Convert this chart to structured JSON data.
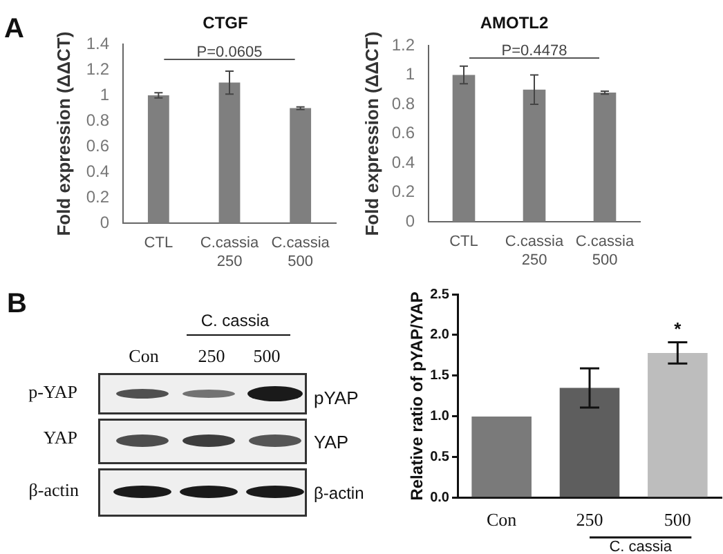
{
  "chart_data": [
    {
      "type": "bar",
      "title": "CTGF",
      "ylabel": "Fold expression (ΔΔCT)",
      "categories": [
        "CTL",
        "C.cassia 250",
        "C.cassia 500"
      ],
      "values": [
        1.0,
        1.1,
        0.9
      ],
      "errors": [
        0.02,
        0.09,
        0.01
      ],
      "color": "#7f7f7f",
      "ylim": [
        0,
        1.4
      ],
      "yticks": [
        0,
        0.2,
        0.4,
        0.6,
        0.8,
        1,
        1.2,
        1.4
      ],
      "annotations": [
        "A",
        "P=0.0605"
      ]
    },
    {
      "type": "bar",
      "title": "AMOTL2",
      "ylabel": "Fold expression (ΔΔCT)",
      "categories": [
        "CTL",
        "C.cassia 250",
        "C.cassia 500"
      ],
      "values": [
        1.0,
        0.9,
        0.88
      ],
      "errors": [
        0.06,
        0.1,
        0.01
      ],
      "color": "#7f7f7f",
      "ylim": [
        0,
        1.2
      ],
      "yticks": [
        0,
        0.2,
        0.4,
        0.6,
        0.8,
        1,
        1.2
      ],
      "annotations": [
        "P=0.4478"
      ]
    },
    {
      "type": "other",
      "annotations": [
        "B",
        "C. cassia",
        "Con",
        "250",
        "500",
        "p-YAP",
        "YAP",
        "β-actin",
        "pYAP",
        "YAP",
        "β-actin"
      ]
    },
    {
      "type": "bar",
      "ylabel": "Relative ratio of pYAP/YAP",
      "categories": [
        "Con",
        "250",
        "500"
      ],
      "values": [
        1.0,
        1.35,
        1.78
      ],
      "errors": [
        null,
        0.24,
        0.13
      ],
      "colors": [
        "#7a7a7a",
        "#5e5e5e",
        "#bdbdbd"
      ],
      "ylim": [
        0,
        2.5
      ],
      "yticks": [
        {
          "value": 0,
          "label": "0.0"
        },
        0.5,
        {
          "value": 1,
          "label": "1.0"
        },
        1.5,
        {
          "value": 2,
          "label": "2.0"
        },
        2.5
      ],
      "annotations": [
        "*",
        "C. cassia"
      ]
    }
  ]
}
